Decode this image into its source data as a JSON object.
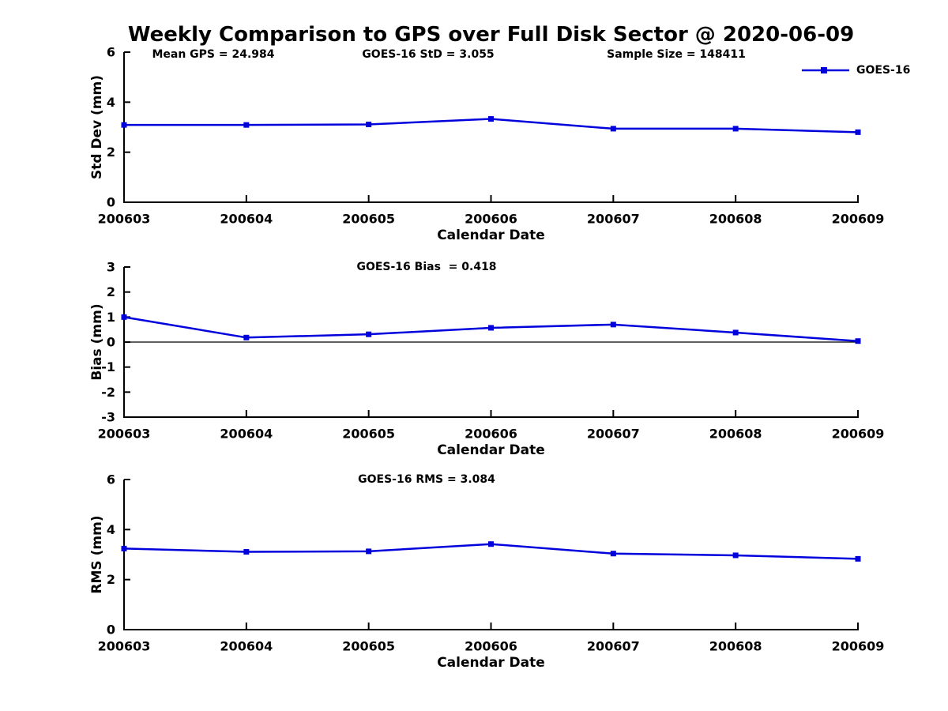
{
  "figure": {
    "title": "Weekly Comparison to GPS over Full Disk Sector @ 2020-06-09",
    "background": "#ffffff"
  },
  "legend": {
    "label": "GOES-16",
    "position": "top-right",
    "marker": "square"
  },
  "colors": {
    "line": "#0000dd",
    "marker": "#0000dd",
    "axis": "#000000",
    "text": "#000000",
    "zero_line": "#000000"
  },
  "chart_data": [
    {
      "type": "line",
      "subplot": "std-dev",
      "title": "",
      "xlabel": "Calendar Date",
      "ylabel": "Std Dev (mm)",
      "categories": [
        "200603",
        "200604",
        "200605",
        "200606",
        "200607",
        "200608",
        "200609"
      ],
      "series": [
        {
          "name": "GOES-16",
          "color": "#0000dd",
          "marker": "square",
          "values": [
            3.09,
            3.09,
            3.11,
            3.33,
            2.94,
            2.94,
            2.8
          ]
        }
      ],
      "ylim": [
        0,
        6
      ],
      "yticks": [
        0,
        2,
        4,
        6
      ],
      "grid": false,
      "zero_line": false,
      "legend_position": "top-right",
      "annotations": [
        "Mean GPS = 24.984",
        "GOES-16 StD = 3.055",
        "Sample Size = 148411"
      ]
    },
    {
      "type": "line",
      "subplot": "bias",
      "title": "",
      "xlabel": "Calendar Date",
      "ylabel": "Bias (mm)",
      "categories": [
        "200603",
        "200604",
        "200605",
        "200606",
        "200607",
        "200608",
        "200609"
      ],
      "series": [
        {
          "name": "GOES-16",
          "color": "#0000dd",
          "marker": "square",
          "values": [
            1.0,
            0.18,
            0.31,
            0.57,
            0.7,
            0.38,
            0.04
          ]
        }
      ],
      "ylim": [
        -3,
        3
      ],
      "yticks": [
        -3,
        -2,
        -1,
        0,
        1,
        2,
        3
      ],
      "grid": false,
      "zero_line": true,
      "annotations": [
        "GOES-16 Bias  = 0.418"
      ]
    },
    {
      "type": "line",
      "subplot": "rms",
      "title": "",
      "xlabel": "Calendar Date",
      "ylabel": "RMS (mm)",
      "categories": [
        "200603",
        "200604",
        "200605",
        "200606",
        "200607",
        "200608",
        "200609"
      ],
      "series": [
        {
          "name": "GOES-16",
          "color": "#0000dd",
          "marker": "square",
          "values": [
            3.24,
            3.11,
            3.13,
            3.42,
            3.04,
            2.97,
            2.83
          ]
        }
      ],
      "ylim": [
        0,
        6
      ],
      "yticks": [
        0,
        2,
        4,
        6
      ],
      "grid": false,
      "zero_line": false,
      "annotations": [
        "GOES-16 RMS = 3.084"
      ]
    }
  ]
}
